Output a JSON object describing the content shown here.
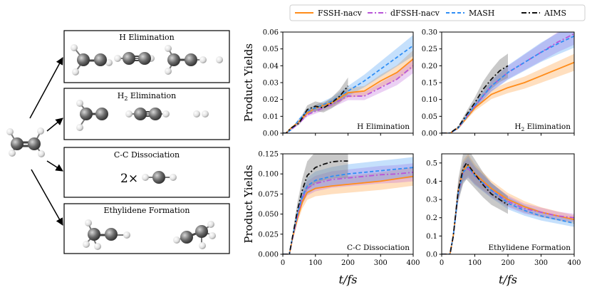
{
  "figure": {
    "reaction_channels": [
      "H Elimination",
      "H2 Elimination",
      "C-C Dissociation",
      "Ethylidene Formation"
    ],
    "cc_dissociation_label": "2×"
  },
  "legend": {
    "placement": "top",
    "entries": [
      {
        "name": "FSSH-nacv",
        "color": "#ff8c1a",
        "dash": "solid"
      },
      {
        "name": "dFSSH-nacv",
        "color": "#b855d8",
        "dash": "dashdot"
      },
      {
        "name": "MASH",
        "color": "#2f8ef5",
        "dash": "dashed"
      },
      {
        "name": "AIMS",
        "color": "#111111",
        "dash": "dashdot"
      }
    ]
  },
  "chart_data": [
    {
      "type": "line",
      "title": "H Elimination",
      "xlabel": "",
      "ylabel": "Product Yields",
      "xlim": [
        0,
        400
      ],
      "ylim": [
        0,
        0.06
      ],
      "yticks": [
        "0.00",
        "0.01",
        "0.02",
        "0.03",
        "0.04",
        "0.05",
        "0.06"
      ],
      "xticks": [],
      "series": [
        {
          "name": "FSSH-nacv",
          "x": [
            0,
            10,
            25,
            50,
            75,
            100,
            150,
            200,
            250,
            300,
            350,
            400
          ],
          "y": [
            0,
            0,
            0.003,
            0.007,
            0.012,
            0.015,
            0.018,
            0.024,
            0.025,
            0.031,
            0.036,
            0.044
          ]
        },
        {
          "name": "dFSSH-nacv",
          "x": [
            0,
            10,
            25,
            50,
            75,
            100,
            150,
            200,
            250,
            300,
            350,
            400
          ],
          "y": [
            0,
            0,
            0.002,
            0.006,
            0.011,
            0.013,
            0.017,
            0.022,
            0.022,
            0.027,
            0.032,
            0.04
          ]
        },
        {
          "name": "MASH",
          "x": [
            0,
            10,
            25,
            50,
            75,
            100,
            150,
            200,
            250,
            300,
            350,
            400
          ],
          "y": [
            0,
            0,
            0.002,
            0.008,
            0.013,
            0.015,
            0.019,
            0.025,
            0.031,
            0.038,
            0.045,
            0.052
          ]
        },
        {
          "name": "AIMS",
          "x": [
            0,
            10,
            25,
            50,
            75,
            100,
            125,
            150,
            175,
            200
          ],
          "y": [
            0,
            0,
            0.003,
            0.006,
            0.014,
            0.016,
            0.015,
            0.018,
            0.022,
            0.028
          ]
        }
      ]
    },
    {
      "type": "line",
      "title": "H2 Elimination",
      "xlabel": "",
      "ylabel": "",
      "xlim": [
        0,
        400
      ],
      "ylim": [
        0,
        0.3
      ],
      "yticks": [
        "0.00",
        "0.05",
        "0.10",
        "0.15",
        "0.20",
        "0.25",
        "0.30"
      ],
      "xticks": [],
      "series": [
        {
          "name": "FSSH-nacv",
          "x": [
            0,
            25,
            50,
            75,
            100,
            150,
            200,
            250,
            300,
            350,
            400
          ],
          "y": [
            0,
            0,
            0.015,
            0.045,
            0.075,
            0.115,
            0.135,
            0.15,
            0.17,
            0.19,
            0.21
          ]
        },
        {
          "name": "dFSSH-nacv",
          "x": [
            0,
            25,
            50,
            75,
            100,
            150,
            200,
            250,
            300,
            350,
            400
          ],
          "y": [
            0,
            0,
            0.015,
            0.048,
            0.08,
            0.14,
            0.18,
            0.21,
            0.24,
            0.27,
            0.295
          ]
        },
        {
          "name": "MASH",
          "x": [
            0,
            25,
            50,
            75,
            100,
            150,
            200,
            250,
            300,
            350,
            400
          ],
          "y": [
            0,
            0,
            0.015,
            0.048,
            0.082,
            0.14,
            0.18,
            0.21,
            0.24,
            0.265,
            0.288
          ]
        },
        {
          "name": "AIMS",
          "x": [
            0,
            25,
            50,
            75,
            100,
            125,
            150,
            175,
            200
          ],
          "y": [
            0,
            0,
            0.018,
            0.055,
            0.09,
            0.13,
            0.16,
            0.185,
            0.2
          ]
        }
      ]
    },
    {
      "type": "line",
      "title": "C-C Dissociation",
      "xlabel": "t/fs",
      "ylabel": "Product Yields",
      "xlim": [
        0,
        400
      ],
      "ylim": [
        0,
        0.125
      ],
      "yticks": [
        "0.000",
        "0.025",
        "0.050",
        "0.075",
        "0.100",
        "0.125"
      ],
      "xticks": [
        "0",
        "100",
        "200",
        "300",
        "400"
      ],
      "series": [
        {
          "name": "FSSH-nacv",
          "x": [
            0,
            20,
            30,
            45,
            60,
            75,
            100,
            150,
            200,
            250,
            300,
            350,
            400
          ],
          "y": [
            0,
            0,
            0.02,
            0.045,
            0.065,
            0.077,
            0.082,
            0.085,
            0.087,
            0.089,
            0.091,
            0.094,
            0.097
          ]
        },
        {
          "name": "dFSSH-nacv",
          "x": [
            0,
            20,
            30,
            45,
            60,
            75,
            100,
            150,
            200,
            250,
            300,
            350,
            400
          ],
          "y": [
            0,
            0,
            0.02,
            0.048,
            0.07,
            0.082,
            0.088,
            0.093,
            0.095,
            0.097,
            0.099,
            0.1,
            0.102
          ]
        },
        {
          "name": "MASH",
          "x": [
            0,
            20,
            30,
            45,
            60,
            75,
            100,
            150,
            200,
            250,
            300,
            350,
            400
          ],
          "y": [
            0,
            0,
            0.022,
            0.05,
            0.072,
            0.085,
            0.092,
            0.097,
            0.1,
            0.102,
            0.104,
            0.106,
            0.108
          ]
        },
        {
          "name": "AIMS",
          "x": [
            0,
            20,
            30,
            45,
            60,
            75,
            100,
            125,
            150,
            175,
            200
          ],
          "y": [
            0,
            0,
            0.022,
            0.055,
            0.08,
            0.098,
            0.108,
            0.112,
            0.115,
            0.116,
            0.116
          ]
        }
      ]
    },
    {
      "type": "line",
      "title": "Ethylidene Formation",
      "xlabel": "t/fs",
      "ylabel": "",
      "xlim": [
        0,
        400
      ],
      "ylim": [
        0,
        0.55
      ],
      "yticks": [
        "0.0",
        "0.1",
        "0.2",
        "0.3",
        "0.4",
        "0.5"
      ],
      "xticks": [
        "0",
        "100",
        "200",
        "300",
        "400"
      ],
      "series": [
        {
          "name": "FSSH-nacv",
          "x": [
            0,
            25,
            35,
            50,
            65,
            80,
            100,
            150,
            200,
            250,
            300,
            350,
            400
          ],
          "y": [
            0,
            0,
            0.1,
            0.35,
            0.46,
            0.49,
            0.44,
            0.36,
            0.3,
            0.26,
            0.23,
            0.21,
            0.19
          ]
        },
        {
          "name": "dFSSH-nacv",
          "x": [
            0,
            25,
            35,
            50,
            65,
            80,
            100,
            150,
            200,
            250,
            300,
            350,
            400
          ],
          "y": [
            0,
            0,
            0.1,
            0.34,
            0.45,
            0.47,
            0.43,
            0.35,
            0.29,
            0.25,
            0.23,
            0.21,
            0.2
          ]
        },
        {
          "name": "MASH",
          "x": [
            0,
            25,
            35,
            50,
            65,
            80,
            100,
            150,
            200,
            250,
            300,
            350,
            400
          ],
          "y": [
            0,
            0,
            0.1,
            0.34,
            0.45,
            0.48,
            0.43,
            0.35,
            0.28,
            0.24,
            0.21,
            0.19,
            0.17
          ]
        },
        {
          "name": "AIMS",
          "x": [
            0,
            25,
            35,
            50,
            65,
            75,
            100,
            125,
            150,
            175,
            200
          ],
          "y": [
            0,
            0,
            0.1,
            0.35,
            0.47,
            0.5,
            0.44,
            0.38,
            0.33,
            0.3,
            0.27
          ]
        }
      ]
    }
  ]
}
